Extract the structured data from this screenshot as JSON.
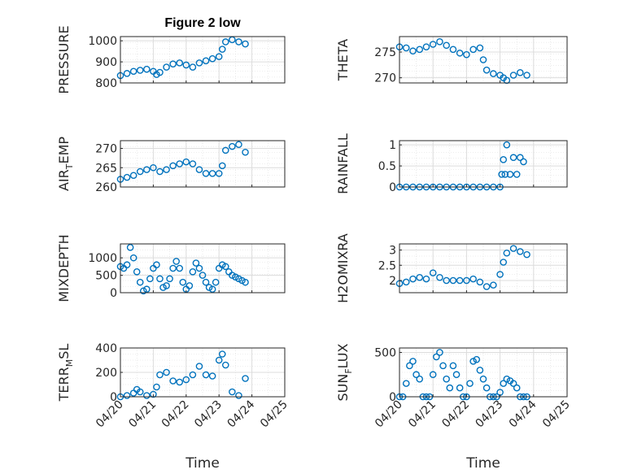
{
  "colors": {
    "marker": "#0072BD",
    "axis": "#262626",
    "grid": "#DCDCDC",
    "plot_bg": "#FFFFFF"
  },
  "chart_data": [
    {
      "id": "pressure",
      "type": "scatter",
      "title": "Figure 2 low",
      "ylabel": "PRESSURE",
      "ylabel_sub": null,
      "ylim": [
        800,
        1020
      ],
      "yticks": [
        800,
        900,
        1000
      ],
      "ytick_labels": [
        "800",
        "900",
        "1000"
      ],
      "xlim": [
        0,
        5
      ],
      "xtick_labels": [],
      "grid": true,
      "x": [
        0.0,
        0.2,
        0.4,
        0.6,
        0.8,
        1.0,
        1.1,
        1.2,
        1.4,
        1.6,
        1.8,
        2.0,
        2.2,
        2.4,
        2.6,
        2.8,
        3.0,
        3.1,
        3.2,
        3.4,
        3.6,
        3.8
      ],
      "y": [
        835,
        845,
        855,
        860,
        865,
        855,
        840,
        850,
        875,
        890,
        895,
        885,
        875,
        895,
        905,
        915,
        925,
        960,
        995,
        1005,
        995,
        985
      ]
    },
    {
      "id": "theta",
      "type": "scatter",
      "title": "",
      "ylabel": "THETA",
      "ylabel_sub": null,
      "ylim": [
        269,
        278
      ],
      "yticks": [
        270,
        275
      ],
      "ytick_labels": [
        "270",
        "275"
      ],
      "xlim": [
        0,
        5
      ],
      "xtick_labels": [],
      "grid": true,
      "x": [
        0.0,
        0.2,
        0.4,
        0.6,
        0.8,
        1.0,
        1.2,
        1.4,
        1.6,
        1.8,
        2.0,
        2.2,
        2.4,
        2.5,
        2.6,
        2.8,
        3.0,
        3.1,
        3.2,
        3.4,
        3.6,
        3.8
      ],
      "y": [
        276,
        275.8,
        275.2,
        275.5,
        276,
        276.5,
        277,
        276.3,
        275.5,
        274.8,
        274.5,
        275.5,
        275.8,
        273.5,
        271.5,
        270.8,
        270.5,
        270,
        269.5,
        270.5,
        271,
        270.5
      ]
    },
    {
      "id": "air_temp",
      "type": "scatter",
      "title": "",
      "ylabel": "AIR",
      "ylabel_sub": "T",
      "ylabel_suffix": "EMP",
      "ylim": [
        260,
        272
      ],
      "yticks": [
        260,
        265,
        270
      ],
      "ytick_labels": [
        "260",
        "265",
        "270"
      ],
      "xlim": [
        0,
        5
      ],
      "xtick_labels": [],
      "grid": true,
      "x": [
        0.0,
        0.2,
        0.4,
        0.6,
        0.8,
        1.0,
        1.2,
        1.4,
        1.6,
        1.8,
        2.0,
        2.2,
        2.4,
        2.6,
        2.8,
        3.0,
        3.1,
        3.2,
        3.4,
        3.6,
        3.8
      ],
      "y": [
        262,
        262.5,
        263,
        264,
        264.5,
        265,
        264,
        264.5,
        265.5,
        266,
        266.5,
        266,
        264.5,
        263.5,
        263.5,
        263.5,
        265.5,
        269.5,
        270.5,
        271,
        269
      ]
    },
    {
      "id": "rainfall",
      "type": "scatter",
      "title": "",
      "ylabel": "RAINFALL",
      "ylabel_sub": null,
      "ylim": [
        0,
        1.1
      ],
      "yticks": [
        0,
        0.5,
        1
      ],
      "ytick_labels": [
        "0",
        "0.5",
        "1"
      ],
      "xlim": [
        0,
        5
      ],
      "xtick_labels": [],
      "grid": true,
      "x": [
        0.0,
        0.2,
        0.4,
        0.6,
        0.8,
        1.0,
        1.2,
        1.4,
        1.6,
        1.8,
        2.0,
        2.2,
        2.4,
        2.6,
        2.8,
        3.0,
        3.05,
        3.1,
        3.15,
        3.2,
        3.3,
        3.4,
        3.5,
        3.6,
        3.7
      ],
      "y": [
        0,
        0,
        0,
        0,
        0,
        0,
        0,
        0,
        0,
        0,
        0,
        0,
        0,
        0,
        0,
        0,
        0.3,
        0.65,
        0.3,
        1.0,
        0.3,
        0.7,
        0.3,
        0.7,
        0.6
      ]
    },
    {
      "id": "mixdepth",
      "type": "scatter",
      "title": "",
      "ylabel": "MIXDEPTH",
      "ylabel_sub": null,
      "ylim": [
        0,
        1400
      ],
      "yticks": [
        0,
        500,
        1000
      ],
      "ytick_labels": [
        "0",
        "500",
        "1000"
      ],
      "xlim": [
        0,
        5
      ],
      "xtick_labels": [],
      "grid": true,
      "x": [
        0.0,
        0.1,
        0.2,
        0.3,
        0.4,
        0.5,
        0.6,
        0.7,
        0.8,
        0.9,
        1.0,
        1.1,
        1.2,
        1.3,
        1.4,
        1.5,
        1.6,
        1.7,
        1.8,
        1.9,
        2.0,
        2.1,
        2.2,
        2.3,
        2.4,
        2.5,
        2.6,
        2.7,
        2.8,
        2.9,
        3.0,
        3.1,
        3.2,
        3.3,
        3.4,
        3.5,
        3.6,
        3.7,
        3.8
      ],
      "y": [
        750,
        700,
        800,
        1300,
        1000,
        600,
        300,
        50,
        100,
        400,
        700,
        800,
        400,
        150,
        200,
        400,
        700,
        900,
        700,
        300,
        100,
        200,
        600,
        850,
        700,
        500,
        300,
        150,
        100,
        300,
        700,
        800,
        750,
        600,
        500,
        450,
        400,
        350,
        300
      ]
    },
    {
      "id": "h2omixra",
      "type": "scatter",
      "title": "",
      "ylabel": "H2OMIXRA",
      "ylabel_sub": null,
      "ylim": [
        1.6,
        3.2
      ],
      "yticks": [
        2,
        2.5,
        3
      ],
      "ytick_labels": [
        "2",
        "2.5",
        "3"
      ],
      "xlim": [
        0,
        5
      ],
      "xtick_labels": [],
      "grid": true,
      "x": [
        0.0,
        0.2,
        0.4,
        0.6,
        0.8,
        1.0,
        1.2,
        1.4,
        1.6,
        1.8,
        2.0,
        2.2,
        2.4,
        2.6,
        2.8,
        3.0,
        3.1,
        3.2,
        3.4,
        3.6,
        3.8
      ],
      "y": [
        1.9,
        1.95,
        2.05,
        2.1,
        2.05,
        2.25,
        2.1,
        2.0,
        2.0,
        2.0,
        2.0,
        2.05,
        1.95,
        1.8,
        1.85,
        2.2,
        2.6,
        2.9,
        3.05,
        2.95,
        2.85
      ]
    },
    {
      "id": "terr_msl",
      "type": "scatter",
      "title": "",
      "ylabel": "TERR",
      "ylabel_sub": "M",
      "ylabel_suffix": "SL",
      "ylim": [
        0,
        400
      ],
      "yticks": [
        0,
        200,
        400
      ],
      "ytick_labels": [
        "0",
        "200",
        "400"
      ],
      "xlim": [
        0,
        5
      ],
      "xtick_labels": [
        "04/20",
        "04/21",
        "04/22",
        "04/23",
        "04/24",
        "04/25"
      ],
      "xlabel": "Time",
      "grid": true,
      "x": [
        0.0,
        0.2,
        0.4,
        0.5,
        0.6,
        0.8,
        1.0,
        1.1,
        1.2,
        1.4,
        1.6,
        1.8,
        2.0,
        2.2,
        2.4,
        2.6,
        2.8,
        3.0,
        3.1,
        3.2,
        3.4,
        3.6,
        3.8
      ],
      "y": [
        0,
        10,
        30,
        60,
        40,
        10,
        20,
        80,
        180,
        200,
        130,
        120,
        140,
        180,
        250,
        180,
        170,
        300,
        350,
        260,
        40,
        10,
        150
      ]
    },
    {
      "id": "sun_flux",
      "type": "scatter",
      "title": "",
      "ylabel": "SUN",
      "ylabel_sub": "F",
      "ylabel_suffix": "LUX",
      "ylim": [
        0,
        550
      ],
      "yticks": [
        0,
        500
      ],
      "ytick_labels": [
        "0",
        "500"
      ],
      "xlim": [
        0,
        5
      ],
      "xtick_labels": [
        "04/20",
        "04/21",
        "04/22",
        "04/23",
        "04/24",
        "04/25"
      ],
      "xlabel": "Time",
      "grid": true,
      "x": [
        0.0,
        0.1,
        0.2,
        0.3,
        0.4,
        0.5,
        0.6,
        0.7,
        0.8,
        0.9,
        1.0,
        1.1,
        1.2,
        1.3,
        1.4,
        1.5,
        1.6,
        1.7,
        1.8,
        1.9,
        2.0,
        2.1,
        2.2,
        2.3,
        2.4,
        2.5,
        2.6,
        2.7,
        2.8,
        2.9,
        3.0,
        3.1,
        3.2,
        3.3,
        3.4,
        3.5,
        3.6,
        3.7,
        3.8
      ],
      "y": [
        0,
        0,
        150,
        350,
        400,
        250,
        200,
        0,
        0,
        0,
        250,
        450,
        500,
        350,
        200,
        100,
        350,
        250,
        100,
        0,
        0,
        150,
        400,
        420,
        300,
        200,
        100,
        0,
        0,
        0,
        50,
        150,
        200,
        180,
        150,
        100,
        0,
        0,
        0
      ]
    }
  ]
}
